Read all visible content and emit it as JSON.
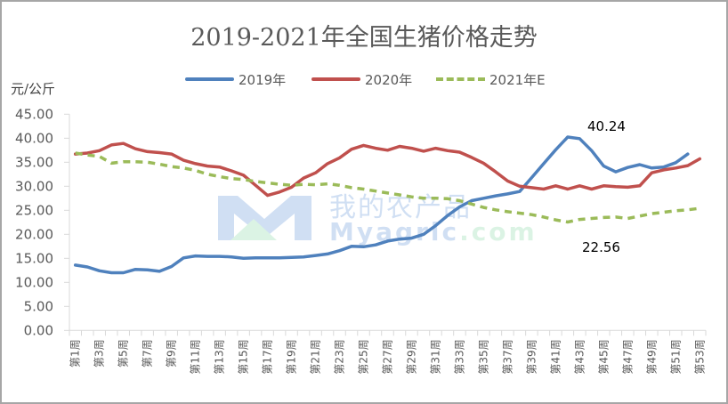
{
  "header": {
    "title": "2019-2021年全国生猪价格走势",
    "y_unit": "元/公斤"
  },
  "legend": [
    {
      "label": "2019年",
      "color": "#4f81bd",
      "style": "solid"
    },
    {
      "label": "2020年",
      "color": "#c0504d",
      "style": "solid"
    },
    {
      "label": "2021年E",
      "color": "#9bbb59",
      "style": "dashed"
    }
  ],
  "watermark": {
    "cn": "我的农产品",
    "en_main": "Myagric",
    "en_domain": ".com"
  },
  "annotations": [
    {
      "text": "40.24",
      "series": "2019年",
      "week": 42
    },
    {
      "text": "22.56",
      "series": "2021年E",
      "week": 42
    }
  ],
  "chart_data": {
    "type": "line",
    "title": "2019-2021年全国生猪价格走势",
    "xlabel": "",
    "ylabel": "元/公斤",
    "ylim": [
      0,
      45
    ],
    "yticks": [
      "0.00",
      "5.00",
      "10.00",
      "15.00",
      "20.00",
      "25.00",
      "30.00",
      "35.00",
      "40.00",
      "45.00"
    ],
    "grid": false,
    "legend_position": "top",
    "categories": [
      "第1周",
      "第2周",
      "第3周",
      "第4周",
      "第5周",
      "第6周",
      "第7周",
      "第8周",
      "第9周",
      "第10周",
      "第11周",
      "第12周",
      "第13周",
      "第14周",
      "第15周",
      "第16周",
      "第17周",
      "第18周",
      "第19周",
      "第20周",
      "第21周",
      "第22周",
      "第23周",
      "第24周",
      "第25周",
      "第26周",
      "第27周",
      "第28周",
      "第29周",
      "第30周",
      "第31周",
      "第32周",
      "第33周",
      "第34周",
      "第35周",
      "第36周",
      "第37周",
      "第38周",
      "第39周",
      "第40周",
      "第41周",
      "第42周",
      "第43周",
      "第44周",
      "第45周",
      "第46周",
      "第47周",
      "第48周",
      "第49周",
      "第50周",
      "第51周",
      "第52周",
      "第53周"
    ],
    "visible_tick_labels": [
      "第1周",
      "第3周",
      "第5周",
      "第7周",
      "第9周",
      "第11周",
      "第13周",
      "第15周",
      "第17周",
      "第19周",
      "第21周",
      "第23周",
      "第25周",
      "第27周",
      "第29周",
      "第31周",
      "第33周",
      "第35周",
      "第37周",
      "第39周",
      "第41周",
      "第43周",
      "第45周",
      "第47周",
      "第49周",
      "第51周",
      "第53周"
    ],
    "series": [
      {
        "name": "2019年",
        "color": "#4f81bd",
        "dash": false,
        "values": [
          13.6,
          13.2,
          12.4,
          12.0,
          12.0,
          12.7,
          12.6,
          12.3,
          13.3,
          15.1,
          15.5,
          15.4,
          15.4,
          15.3,
          15.0,
          15.1,
          15.1,
          15.1,
          15.2,
          15.3,
          15.6,
          15.9,
          16.6,
          17.5,
          17.4,
          17.8,
          18.6,
          19.0,
          19.2,
          20.0,
          21.8,
          23.9,
          25.7,
          27.0,
          27.5,
          28.0,
          28.4,
          28.9,
          31.8,
          34.7,
          37.6,
          40.24,
          39.9,
          37.4,
          34.2,
          33.0,
          33.9,
          34.5,
          33.8,
          34.0,
          34.9,
          36.7,
          null
        ]
      },
      {
        "name": "2020年",
        "color": "#c0504d",
        "dash": false,
        "values": [
          36.7,
          36.9,
          37.4,
          38.6,
          38.9,
          37.8,
          37.2,
          37.0,
          36.7,
          35.4,
          34.7,
          34.2,
          34.0,
          33.2,
          32.3,
          30.2,
          28.1,
          28.8,
          29.8,
          31.7,
          32.8,
          34.7,
          35.9,
          37.7,
          38.5,
          37.9,
          37.5,
          38.3,
          37.9,
          37.3,
          37.9,
          37.4,
          37.1,
          36.0,
          34.8,
          33.0,
          31.1,
          30.0,
          29.7,
          29.4,
          30.1,
          29.4,
          30.1,
          29.4,
          30.1,
          29.9,
          29.8,
          30.1,
          32.8,
          33.4,
          33.8,
          34.3,
          35.7
        ]
      },
      {
        "name": "2021年E",
        "color": "#9bbb59",
        "dash": true,
        "values": [
          36.9,
          36.5,
          36.2,
          34.8,
          35.1,
          35.1,
          35.0,
          34.6,
          34.1,
          33.8,
          33.3,
          32.5,
          32.0,
          31.6,
          31.4,
          31.0,
          30.7,
          30.4,
          30.2,
          30.4,
          30.3,
          30.5,
          30.2,
          29.7,
          29.4,
          29.0,
          28.6,
          28.2,
          27.8,
          27.5,
          27.5,
          27.4,
          27.0,
          26.3,
          25.6,
          25.1,
          24.7,
          24.4,
          24.1,
          23.6,
          23.0,
          22.56,
          23.1,
          23.3,
          23.5,
          23.6,
          23.3,
          23.8,
          24.3,
          24.6,
          24.9,
          25.1,
          25.4
        ]
      }
    ]
  }
}
